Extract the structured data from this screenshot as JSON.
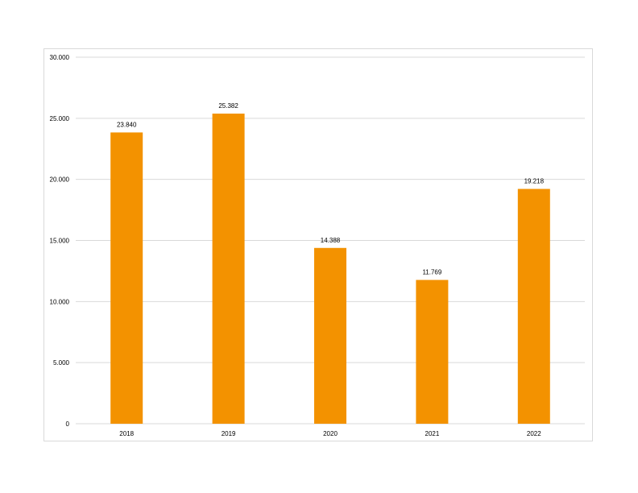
{
  "colors": {
    "bar": "#f39200",
    "grid": "#d9d9d9",
    "frame": "#d9d9d9"
  },
  "chart_data": {
    "type": "bar",
    "categories": [
      "2018",
      "2019",
      "2020",
      "2021",
      "2022"
    ],
    "values": [
      23840,
      25382,
      14388,
      11769,
      19218
    ],
    "value_labels": [
      "23.840",
      "25.382",
      "14.388",
      "11.769",
      "19.218"
    ],
    "y_ticks": [
      0,
      5000,
      10000,
      15000,
      20000,
      25000,
      30000
    ],
    "y_tick_labels": [
      "0",
      "5.000",
      "10.000",
      "15.000",
      "20.000",
      "25.000",
      "30.000"
    ],
    "ylim": [
      0,
      30000
    ],
    "title": "",
    "xlabel": "",
    "ylabel": "",
    "grid": true,
    "legend": "none"
  }
}
